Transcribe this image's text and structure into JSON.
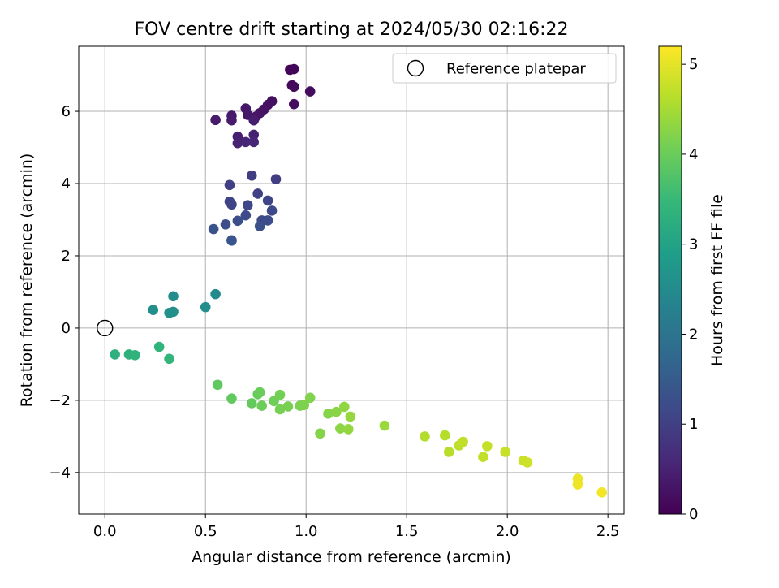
{
  "chart_data": {
    "type": "scatter",
    "title": "FOV centre drift starting at 2024/05/30 02:16:22",
    "xlabel": "Angular distance from reference (arcmin)",
    "ylabel": "Rotation from reference (arcmin)",
    "xlim": [
      -0.13,
      2.58
    ],
    "ylim": [
      -5.15,
      7.8
    ],
    "xticks": [
      0.0,
      0.5,
      1.0,
      1.5,
      2.0,
      2.5
    ],
    "xtick_labels": [
      "0.0",
      "0.5",
      "1.0",
      "1.5",
      "2.0",
      "2.5"
    ],
    "yticks": [
      -4,
      -2,
      0,
      2,
      4,
      6
    ],
    "ytick_labels": [
      "−4",
      "−2",
      "0",
      "2",
      "4",
      "6"
    ],
    "grid": true,
    "legend": {
      "position": "top-right",
      "entries": [
        "Reference platepar"
      ]
    },
    "reference_point": {
      "x": 0.0,
      "y": 0.0,
      "label": "Reference platepar"
    },
    "colorbar": {
      "label": "Hours from first FF file",
      "range": [
        0,
        5.2
      ],
      "ticks": [
        0,
        1,
        2,
        3,
        4,
        5
      ],
      "tick_labels": [
        "0",
        "1",
        "2",
        "3",
        "4",
        "5"
      ],
      "colormap": "viridis"
    },
    "colormap_stops": [
      "#440154",
      "#482878",
      "#3e4989",
      "#31688e",
      "#26828e",
      "#1f9e89",
      "#35b779",
      "#6ece58",
      "#b5de2b",
      "#fde725"
    ],
    "points": [
      {
        "x": 0.92,
        "y": 7.15,
        "h": 0.05
      },
      {
        "x": 0.94,
        "y": 7.17,
        "h": 0.07
      },
      {
        "x": 0.93,
        "y": 6.72,
        "h": 0.1
      },
      {
        "x": 0.94,
        "y": 6.68,
        "h": 0.12
      },
      {
        "x": 1.02,
        "y": 6.55,
        "h": 0.15
      },
      {
        "x": 0.94,
        "y": 6.2,
        "h": 0.17
      },
      {
        "x": 0.83,
        "y": 6.28,
        "h": 0.2
      },
      {
        "x": 0.81,
        "y": 6.18,
        "h": 0.22
      },
      {
        "x": 0.79,
        "y": 6.05,
        "h": 0.25
      },
      {
        "x": 0.77,
        "y": 5.95,
        "h": 0.27
      },
      {
        "x": 0.75,
        "y": 5.85,
        "h": 0.3
      },
      {
        "x": 0.7,
        "y": 6.08,
        "h": 0.32
      },
      {
        "x": 0.71,
        "y": 5.9,
        "h": 0.34
      },
      {
        "x": 0.63,
        "y": 5.88,
        "h": 0.36
      },
      {
        "x": 0.63,
        "y": 5.75,
        "h": 0.38
      },
      {
        "x": 0.55,
        "y": 5.76,
        "h": 0.4
      },
      {
        "x": 0.74,
        "y": 5.75,
        "h": 0.42
      },
      {
        "x": 0.66,
        "y": 5.3,
        "h": 0.45
      },
      {
        "x": 0.74,
        "y": 5.35,
        "h": 0.47
      },
      {
        "x": 0.66,
        "y": 5.12,
        "h": 0.5
      },
      {
        "x": 0.7,
        "y": 5.15,
        "h": 0.52
      },
      {
        "x": 0.74,
        "y": 5.15,
        "h": 0.55
      },
      {
        "x": 0.73,
        "y": 4.22,
        "h": 0.95
      },
      {
        "x": 0.85,
        "y": 4.12,
        "h": 0.97
      },
      {
        "x": 0.62,
        "y": 3.96,
        "h": 1.0
      },
      {
        "x": 0.76,
        "y": 3.72,
        "h": 1.02
      },
      {
        "x": 0.62,
        "y": 3.5,
        "h": 1.05
      },
      {
        "x": 0.63,
        "y": 3.42,
        "h": 1.07
      },
      {
        "x": 0.81,
        "y": 3.53,
        "h": 1.1
      },
      {
        "x": 0.71,
        "y": 3.4,
        "h": 1.12
      },
      {
        "x": 0.83,
        "y": 3.25,
        "h": 1.15
      },
      {
        "x": 0.7,
        "y": 3.12,
        "h": 1.17
      },
      {
        "x": 0.78,
        "y": 2.98,
        "h": 1.2
      },
      {
        "x": 0.81,
        "y": 2.98,
        "h": 1.22
      },
      {
        "x": 0.66,
        "y": 2.97,
        "h": 1.25
      },
      {
        "x": 0.6,
        "y": 2.87,
        "h": 1.27
      },
      {
        "x": 0.77,
        "y": 2.82,
        "h": 1.3
      },
      {
        "x": 0.54,
        "y": 2.74,
        "h": 1.32
      },
      {
        "x": 0.63,
        "y": 2.43,
        "h": 1.35
      },
      {
        "x": 0.63,
        "y": 2.42,
        "h": 1.37
      },
      {
        "x": 0.55,
        "y": 0.94,
        "h": 2.5
      },
      {
        "x": 0.34,
        "y": 0.88,
        "h": 2.52
      },
      {
        "x": 0.5,
        "y": 0.58,
        "h": 2.55
      },
      {
        "x": 0.24,
        "y": 0.5,
        "h": 2.57
      },
      {
        "x": 0.34,
        "y": 0.45,
        "h": 2.6
      },
      {
        "x": 0.32,
        "y": 0.42,
        "h": 2.62
      },
      {
        "x": 0.05,
        "y": -0.73,
        "h": 3.3
      },
      {
        "x": 0.12,
        "y": -0.73,
        "h": 3.32
      },
      {
        "x": 0.15,
        "y": -0.75,
        "h": 3.35
      },
      {
        "x": 0.27,
        "y": -0.52,
        "h": 3.37
      },
      {
        "x": 0.32,
        "y": -0.85,
        "h": 3.4
      },
      {
        "x": 0.56,
        "y": -1.57,
        "h": 3.9
      },
      {
        "x": 0.63,
        "y": -1.95,
        "h": 3.92
      },
      {
        "x": 0.73,
        "y": -2.08,
        "h": 3.95
      },
      {
        "x": 0.76,
        "y": -1.83,
        "h": 3.97
      },
      {
        "x": 0.77,
        "y": -1.78,
        "h": 4.0
      },
      {
        "x": 0.78,
        "y": -2.15,
        "h": 4.02
      },
      {
        "x": 0.84,
        "y": -2.02,
        "h": 4.05
      },
      {
        "x": 0.87,
        "y": -1.85,
        "h": 4.07
      },
      {
        "x": 0.87,
        "y": -2.25,
        "h": 4.1
      },
      {
        "x": 0.91,
        "y": -2.17,
        "h": 4.12
      },
      {
        "x": 0.97,
        "y": -2.15,
        "h": 4.15
      },
      {
        "x": 0.99,
        "y": -2.13,
        "h": 4.17
      },
      {
        "x": 1.02,
        "y": -1.93,
        "h": 4.2
      },
      {
        "x": 1.07,
        "y": -2.92,
        "h": 4.22
      },
      {
        "x": 1.11,
        "y": -2.37,
        "h": 4.25
      },
      {
        "x": 1.15,
        "y": -2.32,
        "h": 4.27
      },
      {
        "x": 1.17,
        "y": -2.78,
        "h": 4.3
      },
      {
        "x": 1.19,
        "y": -2.18,
        "h": 4.32
      },
      {
        "x": 1.21,
        "y": -2.8,
        "h": 4.35
      },
      {
        "x": 1.22,
        "y": -2.45,
        "h": 4.37
      },
      {
        "x": 1.39,
        "y": -2.7,
        "h": 4.4
      },
      {
        "x": 1.59,
        "y": -3.0,
        "h": 4.6
      },
      {
        "x": 1.69,
        "y": -2.97,
        "h": 4.62
      },
      {
        "x": 1.71,
        "y": -3.43,
        "h": 4.65
      },
      {
        "x": 1.76,
        "y": -3.25,
        "h": 4.67
      },
      {
        "x": 1.78,
        "y": -3.15,
        "h": 4.7
      },
      {
        "x": 1.88,
        "y": -3.57,
        "h": 4.72
      },
      {
        "x": 1.9,
        "y": -3.27,
        "h": 4.75
      },
      {
        "x": 1.99,
        "y": -3.43,
        "h": 4.77
      },
      {
        "x": 2.08,
        "y": -3.67,
        "h": 4.8
      },
      {
        "x": 2.1,
        "y": -3.72,
        "h": 4.82
      },
      {
        "x": 2.35,
        "y": -4.17,
        "h": 5.05
      },
      {
        "x": 2.35,
        "y": -4.33,
        "h": 5.08
      },
      {
        "x": 2.47,
        "y": -4.55,
        "h": 5.12
      }
    ]
  }
}
